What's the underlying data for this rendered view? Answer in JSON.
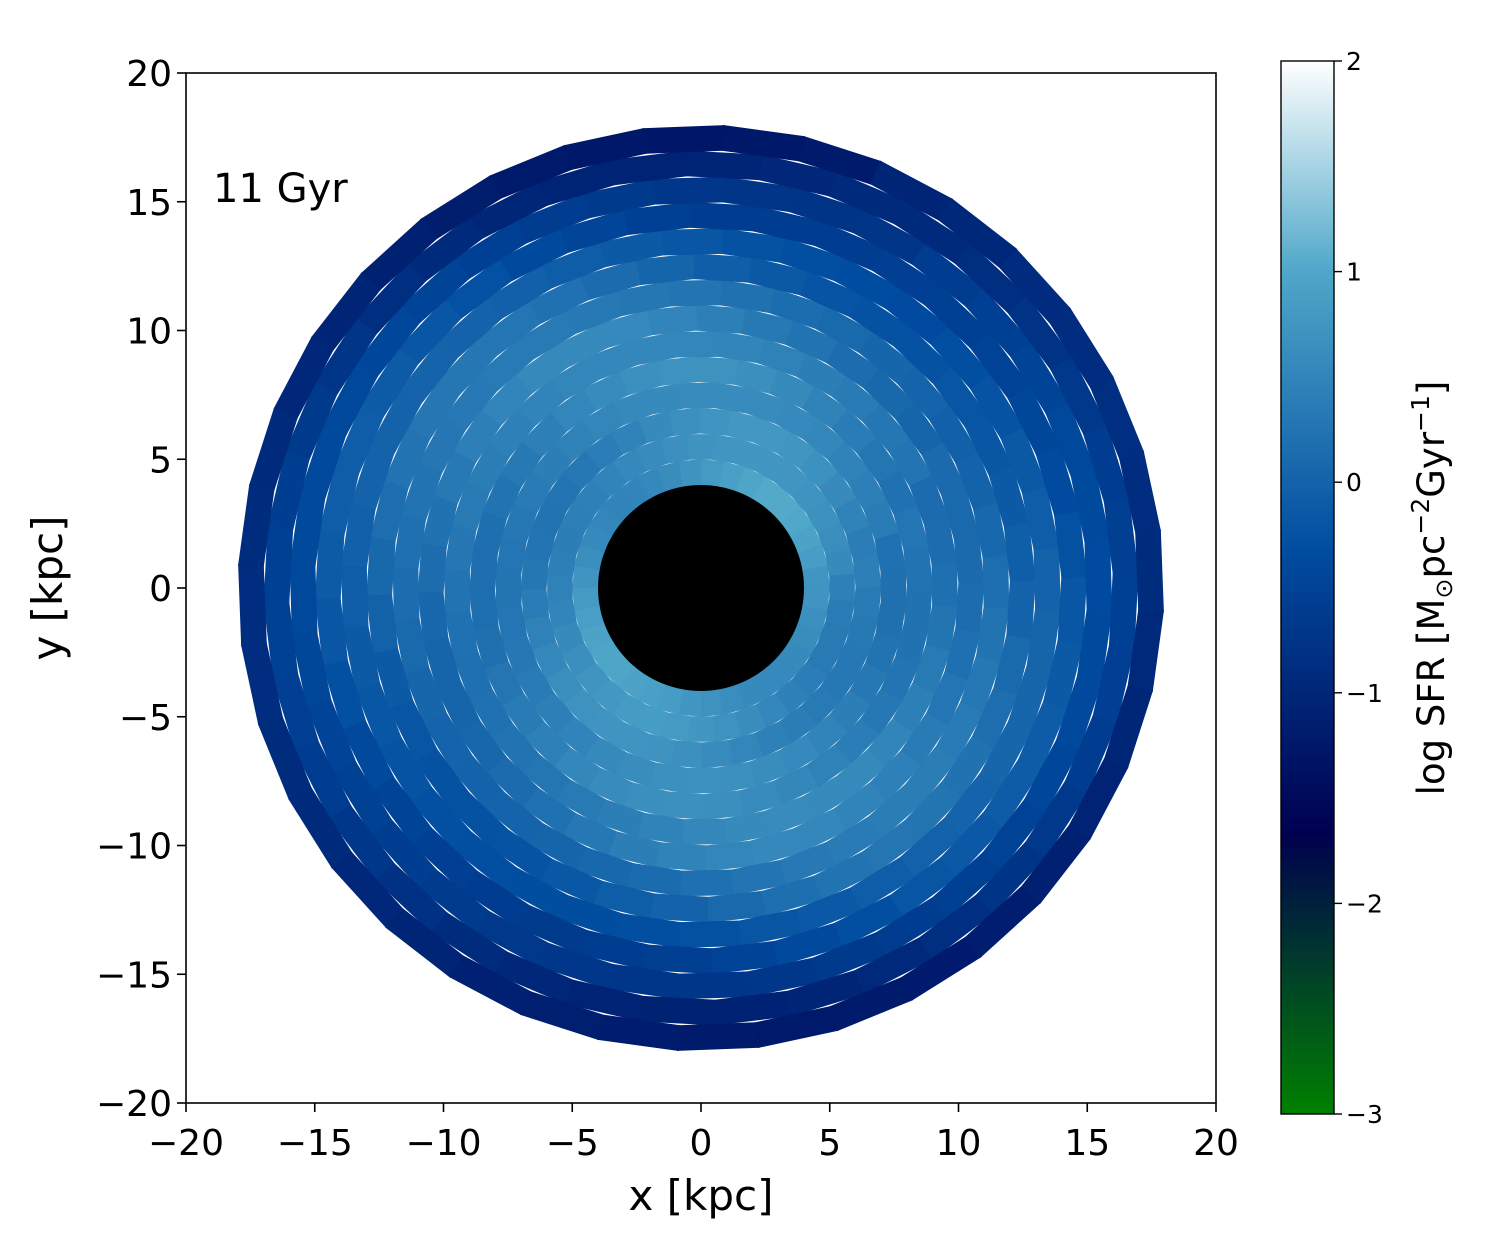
{
  "chart_data": {
    "type": "heatmap",
    "annotation": "11 Gyr",
    "xlabel": "x [kpc]",
    "ylabel": "y [kpc]",
    "xlim": [
      -20,
      20
    ],
    "ylim": [
      -20,
      20
    ],
    "xticks": [
      -20,
      -15,
      -10,
      -5,
      0,
      5,
      10,
      15,
      20
    ],
    "yticks": [
      -20,
      -15,
      -10,
      -5,
      0,
      5,
      10,
      15,
      20
    ],
    "xtick_labels": [
      "−20",
      "−15",
      "−10",
      "−5",
      "0",
      "5",
      "10",
      "15",
      "20"
    ],
    "ytick_labels": [
      "−20",
      "−15",
      "−10",
      "−5",
      "0",
      "5",
      "10",
      "15",
      "20"
    ],
    "grid": false,
    "colorbar": {
      "label_prefix": "log  SFR [M",
      "label_sun": "⊙",
      "label_pc": "pc",
      "label_exp1": "−2",
      "label_gyr": "Gyr",
      "label_exp2": "−1",
      "label_suffix": "]",
      "range": [
        -3,
        2
      ],
      "ticks": [
        -3,
        -2,
        -1,
        0,
        1,
        2
      ],
      "tick_labels": [
        "−3",
        "−2",
        "−1",
        "0",
        "1",
        "2"
      ],
      "colormap": "ocean",
      "stops": [
        {
          "value": -3,
          "color": "#008000"
        },
        {
          "value": -1.67,
          "color": "#000050"
        },
        {
          "value": -0.33,
          "color": "#004ca0"
        },
        {
          "value": 1,
          "color": "#4fa7c9"
        },
        {
          "value": 2,
          "color": "#ffffff"
        }
      ]
    },
    "disk": {
      "inner_radius_kpc": 4,
      "outer_radius_kpc": 18,
      "n_rings": 14,
      "n_sectors": 36,
      "hole_color": "#000000",
      "ring_values_log_sfr": [
        0.75,
        0.6,
        0.5,
        0.45,
        0.42,
        0.38,
        0.3,
        0.18,
        0.02,
        -0.15,
        -0.35,
        -0.55,
        -0.8,
        -1.05
      ],
      "spiral_amplitude": 0.22,
      "spiral_arms": 2,
      "spiral_pitch_deg_per_kpc": 22
    }
  }
}
